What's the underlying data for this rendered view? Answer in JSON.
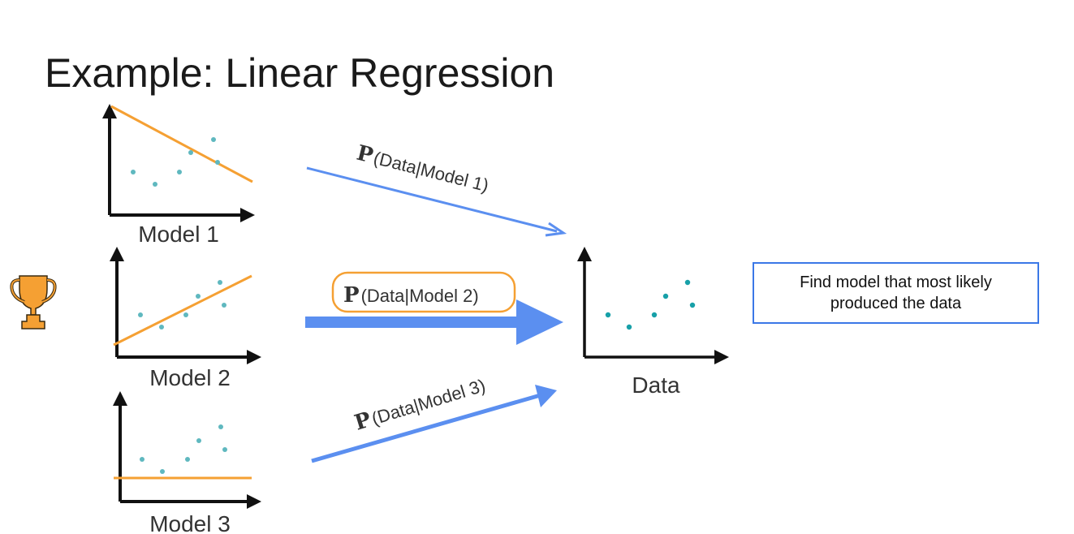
{
  "slide": {
    "title": "Example: Linear Regression",
    "models": [
      {
        "label": "Model 1",
        "probability_label": "(Data|Model 1)"
      },
      {
        "label": "Model 2",
        "probability_label": "(Data|Model 2)",
        "highlighted": true,
        "winner_icon": "trophy-icon"
      },
      {
        "label": "Model 3",
        "probability_label": "(Data|Model 3)"
      }
    ],
    "probability_symbol": "P",
    "data_label": "Data",
    "callout": "Find model that most likely produced the data",
    "colors": {
      "fit_line": "#f5a033",
      "arrow": "#5b8ff0",
      "points": "#5fb8bf",
      "callout_border": "#3b78e7",
      "trophy": "#f5a033"
    }
  }
}
